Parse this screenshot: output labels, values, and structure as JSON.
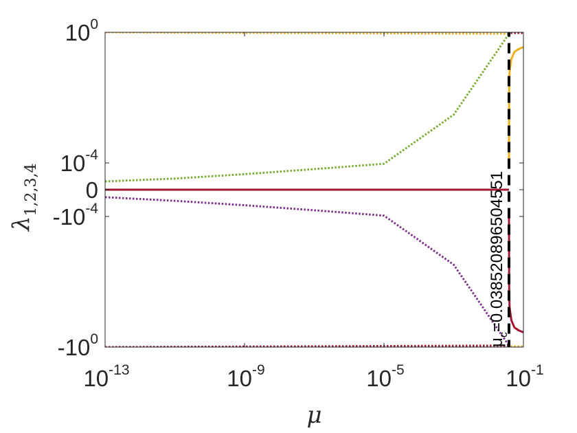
{
  "chart_data": {
    "type": "line",
    "xlabel": "μ",
    "ylabel": "λ",
    "ylabel_subscript": "1,2,3,4",
    "x_scale": "log",
    "y_scale": "symlog",
    "xlim": [
      1e-13,
      0.1
    ],
    "x_ticks": [
      {
        "value": 1e-13,
        "base": "10",
        "exp": "-13"
      },
      {
        "value": 1e-09,
        "base": "10",
        "exp": "-9"
      },
      {
        "value": 1e-05,
        "base": "10",
        "exp": "-5"
      },
      {
        "value": 0.1,
        "base": "10",
        "exp": "-1"
      }
    ],
    "y_ticks": [
      {
        "value": 1,
        "base": "10",
        "exp": "0"
      },
      {
        "value": 0.0001,
        "base": "10",
        "exp": "-4"
      },
      {
        "value": 0,
        "base": "0",
        "exp": ""
      },
      {
        "value": -0.0001,
        "base": "-10",
        "exp": "-4"
      },
      {
        "value": -1,
        "base": "-10",
        "exp": "0"
      }
    ],
    "grid": false,
    "annotation": {
      "prefix": "μ",
      "sub": "c",
      "text": "=0.038520896504551",
      "x": 0.038520896504551
    },
    "colors": {
      "red": "#a2142f",
      "yellow": "#edb120",
      "green": "#77ac30",
      "purple": "#7e2f8e",
      "black": "#000000"
    },
    "series": [
      {
        "color": "yellow",
        "style": "dotted",
        "x": [
          1e-13,
          0.0385
        ],
        "y": [
          1,
          0.9
        ]
      },
      {
        "color": "green",
        "style": "dotted",
        "x": [
          1e-13,
          1e-11,
          1e-09,
          1e-07,
          1e-05,
          0.001,
          0.0385
        ],
        "y": [
          3.5e-08,
          1.2e-07,
          8e-07,
          7e-06,
          7e-05,
          0.003,
          0.9
        ]
      },
      {
        "color": "red",
        "style": "solid",
        "x": [
          1e-13,
          0.0385
        ],
        "y": [
          0,
          0
        ]
      },
      {
        "color": "purple",
        "style": "dotted",
        "x": [
          1e-13,
          1e-11,
          1e-09,
          1e-07,
          1e-05,
          0.001,
          0.0385
        ],
        "y": [
          -2.5e-08,
          -1.2e-07,
          -8e-07,
          -7e-06,
          -7e-05,
          -0.003,
          -0.9
        ]
      },
      {
        "color": "red",
        "style": "dotted",
        "x": [
          1e-13,
          0.0385
        ],
        "y": [
          -1,
          -0.9
        ]
      },
      {
        "color": "red",
        "style": "dotted",
        "x": [
          0.043,
          0.1
        ],
        "y": [
          0.95,
          0.95
        ]
      },
      {
        "color": "yellow",
        "style": "dotted",
        "x": [
          0.043,
          0.1
        ],
        "y": [
          -0.95,
          -0.95
        ]
      },
      {
        "color": "yellow",
        "style": "solid",
        "x": [
          0.0385,
          0.039,
          0.04,
          0.045,
          0.055,
          0.07,
          0.085,
          0.1
        ],
        "y": [
          1e-05,
          0.015,
          0.06,
          0.15,
          0.25,
          0.3,
          0.33,
          0.35
        ]
      },
      {
        "color": "red",
        "style": "solid",
        "x": [
          0.0385,
          0.039,
          0.04,
          0.045,
          0.055,
          0.07,
          0.085,
          0.1
        ],
        "y": [
          -1e-05,
          -0.015,
          -0.06,
          -0.15,
          -0.25,
          -0.3,
          -0.33,
          -0.35
        ]
      },
      {
        "color": "black",
        "style": "dashed",
        "x": [
          0.038520896504551,
          0.038520896504551
        ],
        "y": [
          1.5,
          -1.5
        ]
      }
    ]
  }
}
